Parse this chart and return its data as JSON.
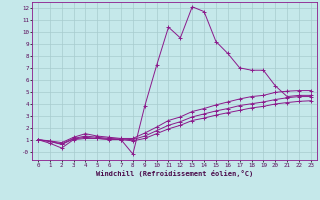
{
  "xlabel": "Windchill (Refroidissement éolien,°C)",
  "bg_color": "#c5e8ea",
  "line_color": "#8b1a8b",
  "grid_color": "#a8ccce",
  "xlim": [
    -0.5,
    23.5
  ],
  "ylim": [
    -0.7,
    12.5
  ],
  "yticks": [
    0,
    1,
    2,
    3,
    4,
    5,
    6,
    7,
    8,
    9,
    10,
    11,
    12
  ],
  "ytick_labels": [
    "-0",
    "1",
    "2",
    "3",
    "4",
    "5",
    "6",
    "7",
    "8",
    "9",
    "10",
    "11",
    "12"
  ],
  "xticks": [
    0,
    1,
    2,
    3,
    4,
    5,
    6,
    7,
    8,
    9,
    10,
    11,
    12,
    13,
    14,
    15,
    16,
    17,
    18,
    19,
    20,
    21,
    22,
    23
  ],
  "series": [
    {
      "x": [
        0,
        1,
        2,
        3,
        4,
        5,
        6,
        7,
        8,
        9,
        10,
        11,
        12,
        13,
        14,
        15,
        16,
        17,
        18,
        19,
        20,
        21,
        22,
        23
      ],
      "y": [
        1.0,
        0.7,
        0.3,
        1.0,
        1.1,
        1.1,
        1.0,
        1.0,
        -0.2,
        3.8,
        7.2,
        10.4,
        9.5,
        12.1,
        11.7,
        9.2,
        8.2,
        7.0,
        6.8,
        6.8,
        5.5,
        4.6,
        4.7,
        4.7
      ]
    },
    {
      "x": [
        0,
        1,
        2,
        3,
        4,
        5,
        6,
        7,
        8,
        9,
        10,
        11,
        12,
        13,
        14,
        15,
        16,
        17,
        18,
        19,
        20,
        21,
        22,
        23
      ],
      "y": [
        1.0,
        0.9,
        0.75,
        1.2,
        1.5,
        1.3,
        1.2,
        1.1,
        1.1,
        1.55,
        2.05,
        2.6,
        2.9,
        3.35,
        3.6,
        3.9,
        4.15,
        4.4,
        4.6,
        4.7,
        4.95,
        5.05,
        5.1,
        5.1
      ]
    },
    {
      "x": [
        0,
        1,
        2,
        3,
        4,
        5,
        6,
        7,
        8,
        9,
        10,
        11,
        12,
        13,
        14,
        15,
        16,
        17,
        18,
        19,
        20,
        21,
        22,
        23
      ],
      "y": [
        1.0,
        0.85,
        0.65,
        1.1,
        1.3,
        1.2,
        1.1,
        1.05,
        1.0,
        1.3,
        1.75,
        2.2,
        2.5,
        2.9,
        3.15,
        3.4,
        3.6,
        3.85,
        4.0,
        4.15,
        4.35,
        4.5,
        4.6,
        4.6
      ]
    },
    {
      "x": [
        0,
        1,
        2,
        3,
        4,
        5,
        6,
        7,
        8,
        9,
        10,
        11,
        12,
        13,
        14,
        15,
        16,
        17,
        18,
        19,
        20,
        21,
        22,
        23
      ],
      "y": [
        1.0,
        0.85,
        0.6,
        1.05,
        1.2,
        1.1,
        1.05,
        1.0,
        0.9,
        1.1,
        1.5,
        1.9,
        2.2,
        2.6,
        2.8,
        3.05,
        3.25,
        3.45,
        3.65,
        3.78,
        3.98,
        4.1,
        4.2,
        4.25
      ]
    }
  ]
}
